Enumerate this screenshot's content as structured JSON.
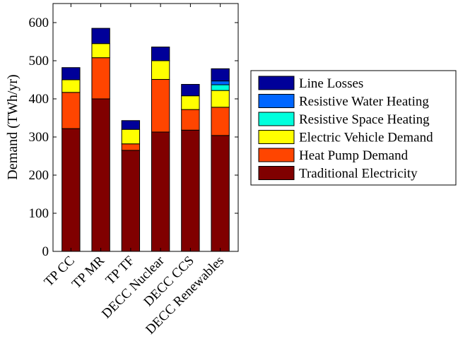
{
  "chart_data": {
    "type": "bar",
    "stacked": true,
    "categories": [
      "TP CC",
      "TP MR",
      "TP TF",
      "DECC Nuclear",
      "DECC CCS",
      "DECC Renewables"
    ],
    "ylabel": "Demand (TWh/yr)",
    "ylim": [
      0,
      650
    ],
    "yticks": [
      0,
      100,
      200,
      300,
      400,
      500,
      600
    ],
    "grid": false,
    "legend_position": "right",
    "series": [
      {
        "name": "Traditional Electricity",
        "color": "#800000",
        "values": [
          322,
          400,
          265,
          313,
          318,
          304
        ]
      },
      {
        "name": "Heat Pump Demand",
        "color": "#ff4500",
        "values": [
          95,
          108,
          17,
          138,
          54,
          74
        ]
      },
      {
        "name": "Electric Vehicle Demand",
        "color": "#ffff00",
        "values": [
          33,
          37,
          38,
          49,
          36,
          44
        ]
      },
      {
        "name": "Resistive Space Heating",
        "color": "#00ffdd",
        "values": [
          0,
          0,
          0,
          0,
          0,
          15
        ]
      },
      {
        "name": "Resistive Water Heating",
        "color": "#0066ff",
        "values": [
          0,
          0,
          0,
          0,
          0,
          10
        ]
      },
      {
        "name": "Line Losses",
        "color": "#000099",
        "values": [
          32,
          40,
          23,
          36,
          30,
          32
        ]
      }
    ],
    "legend_order": [
      "Line Losses",
      "Resistive Water Heating",
      "Resistive Space Heating",
      "Electric Vehicle Demand",
      "Heat Pump Demand",
      "Traditional Electricity"
    ]
  }
}
